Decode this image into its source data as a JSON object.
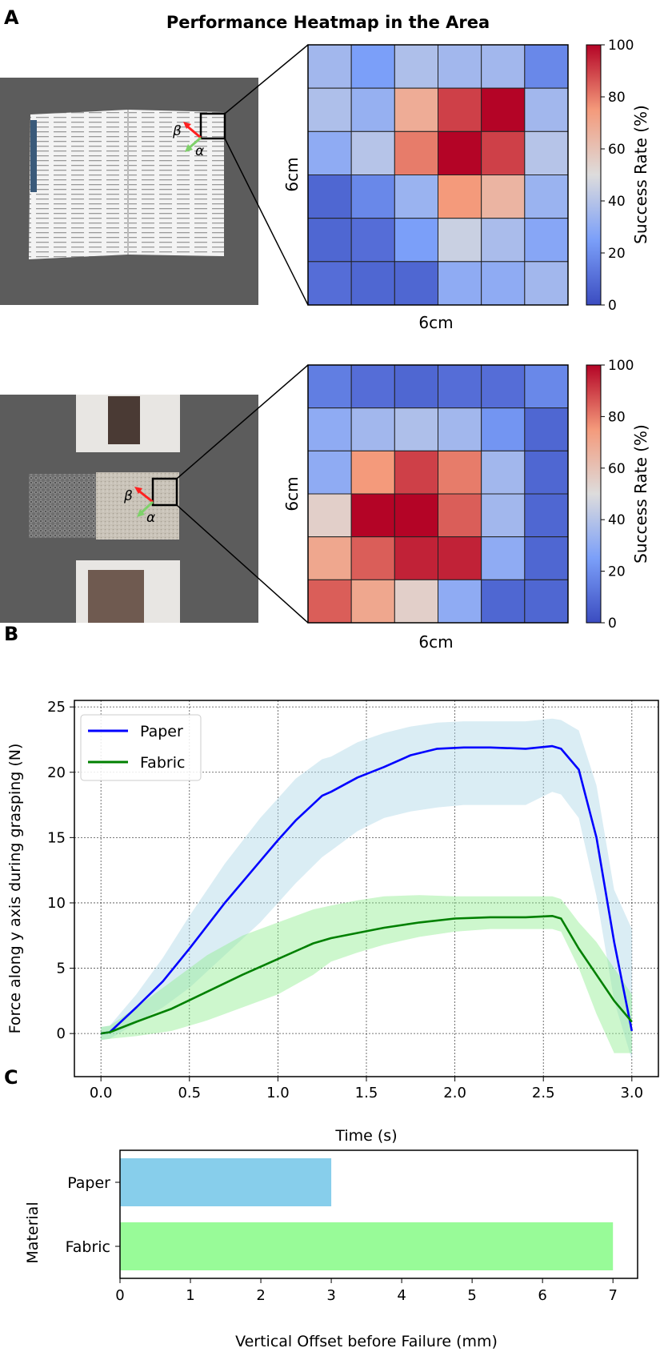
{
  "panel_labels": {
    "a": "A",
    "b": "B",
    "c": "C"
  },
  "photos": {
    "book": {
      "beta": "β",
      "alpha": "α",
      "arrow_beta_color": "#ff2020",
      "arrow_alpha_color": "#7fd16a"
    },
    "fabric": {
      "beta": "β",
      "alpha": "α",
      "arrow_beta_color": "#ff2020",
      "arrow_alpha_color": "#7fd16a"
    }
  },
  "chart_data": [
    {
      "type": "heatmap",
      "title": "Performance Heatmap in the Area",
      "material": "Paper",
      "xlabel": "6cm",
      "ylabel": "6cm",
      "colorbar_label": "Success Rate (%)",
      "colorbar_ticks": [
        "0",
        "20",
        "40",
        "60",
        "80",
        "100"
      ],
      "vmin": 0,
      "vmax": 100,
      "colormap": "coolwarm",
      "values": [
        [
          35,
          25,
          38,
          35,
          35,
          18
        ],
        [
          38,
          32,
          68,
          90,
          100,
          35
        ],
        [
          30,
          40,
          80,
          100,
          90,
          40
        ],
        [
          8,
          18,
          33,
          75,
          65,
          33
        ],
        [
          8,
          10,
          25,
          45,
          37,
          28
        ],
        [
          10,
          8,
          8,
          30,
          30,
          35
        ]
      ]
    },
    {
      "type": "heatmap",
      "material": "Fabric",
      "xlabel": "6cm",
      "ylabel": "6cm",
      "colorbar_label": "Success Rate (%)",
      "colorbar_ticks": [
        "0",
        "20",
        "40",
        "60",
        "80",
        "100"
      ],
      "vmin": 0,
      "vmax": 100,
      "colormap": "coolwarm",
      "values": [
        [
          15,
          10,
          8,
          10,
          10,
          18
        ],
        [
          30,
          35,
          38,
          35,
          22,
          8
        ],
        [
          30,
          75,
          90,
          80,
          35,
          8
        ],
        [
          55,
          100,
          100,
          85,
          35,
          8
        ],
        [
          70,
          85,
          95,
          95,
          30,
          8
        ],
        [
          85,
          70,
          55,
          30,
          8,
          8
        ]
      ]
    },
    {
      "type": "line",
      "xlabel": "Time (s)",
      "ylabel": "Force along y axis during grasping (N)",
      "xlim": [
        -0.15,
        3.15
      ],
      "ylim": [
        -3.3,
        25.5
      ],
      "xticks": [
        "0.0",
        "0.5",
        "1.0",
        "1.5",
        "2.0",
        "2.5",
        "3.0"
      ],
      "yticks": [
        "0",
        "5",
        "10",
        "15",
        "20",
        "25"
      ],
      "grid": true,
      "legend_position": "top-left",
      "series": [
        {
          "name": "Paper",
          "color": "#0000ff",
          "band_color": "#add8e6",
          "x": [
            0.0,
            0.05,
            0.2,
            0.35,
            0.5,
            0.7,
            0.9,
            1.0,
            1.1,
            1.25,
            1.3,
            1.45,
            1.6,
            1.75,
            1.9,
            2.05,
            2.2,
            2.4,
            2.55,
            2.6,
            2.7,
            2.8,
            2.9,
            3.0
          ],
          "y": [
            0.0,
            0.1,
            2.0,
            4.0,
            6.5,
            10.0,
            13.2,
            14.8,
            16.3,
            18.2,
            18.5,
            19.6,
            20.4,
            21.3,
            21.8,
            21.9,
            21.9,
            21.8,
            22.0,
            21.8,
            20.2,
            15.0,
            7.0,
            0.2
          ],
          "lower": [
            -0.5,
            -0.4,
            0.8,
            2.0,
            3.5,
            6.0,
            8.5,
            10.0,
            11.5,
            13.5,
            14.0,
            15.5,
            16.5,
            17.0,
            17.3,
            17.5,
            17.5,
            17.5,
            18.5,
            18.3,
            16.5,
            10.5,
            2.5,
            -2.0
          ],
          "upper": [
            0.5,
            0.6,
            3.0,
            5.8,
            9.0,
            13.0,
            16.5,
            18.0,
            19.5,
            21.0,
            21.2,
            22.3,
            23.0,
            23.5,
            23.8,
            23.9,
            23.9,
            23.9,
            24.1,
            24.0,
            23.2,
            19.0,
            11.0,
            8.0
          ]
        },
        {
          "name": "Fabric",
          "color": "#008000",
          "band_color": "#90ee90",
          "x": [
            0.0,
            0.05,
            0.2,
            0.4,
            0.6,
            0.8,
            1.0,
            1.2,
            1.3,
            1.45,
            1.6,
            1.8,
            2.0,
            2.2,
            2.4,
            2.55,
            2.6,
            2.7,
            2.8,
            2.9,
            3.0
          ],
          "y": [
            0.0,
            0.1,
            0.9,
            1.9,
            3.2,
            4.5,
            5.7,
            6.9,
            7.3,
            7.7,
            8.1,
            8.5,
            8.8,
            8.9,
            8.9,
            9.0,
            8.8,
            6.5,
            4.5,
            2.5,
            0.9
          ],
          "lower": [
            -0.5,
            -0.4,
            -0.2,
            0.2,
            1.0,
            2.0,
            3.0,
            4.5,
            5.5,
            6.2,
            6.8,
            7.4,
            7.8,
            8.0,
            8.0,
            8.0,
            7.8,
            5.0,
            1.5,
            -1.5,
            -1.5
          ],
          "upper": [
            0.5,
            0.6,
            2.0,
            4.0,
            6.0,
            7.5,
            8.5,
            9.5,
            9.8,
            10.2,
            10.5,
            10.6,
            10.5,
            10.5,
            10.5,
            10.5,
            10.3,
            8.5,
            7.0,
            5.0,
            3.0
          ]
        }
      ]
    },
    {
      "type": "bar",
      "orientation": "horizontal",
      "categories": [
        "Paper",
        "Fabric"
      ],
      "values": [
        3,
        7
      ],
      "colors": [
        "#87ceeb",
        "#98fb98"
      ],
      "xlabel": "Vertical Offset before Failure (mm)",
      "ylabel": "Material",
      "xlim": [
        0,
        7.35
      ],
      "xticks": [
        "0",
        "1",
        "2",
        "3",
        "4",
        "5",
        "6",
        "7"
      ]
    }
  ]
}
